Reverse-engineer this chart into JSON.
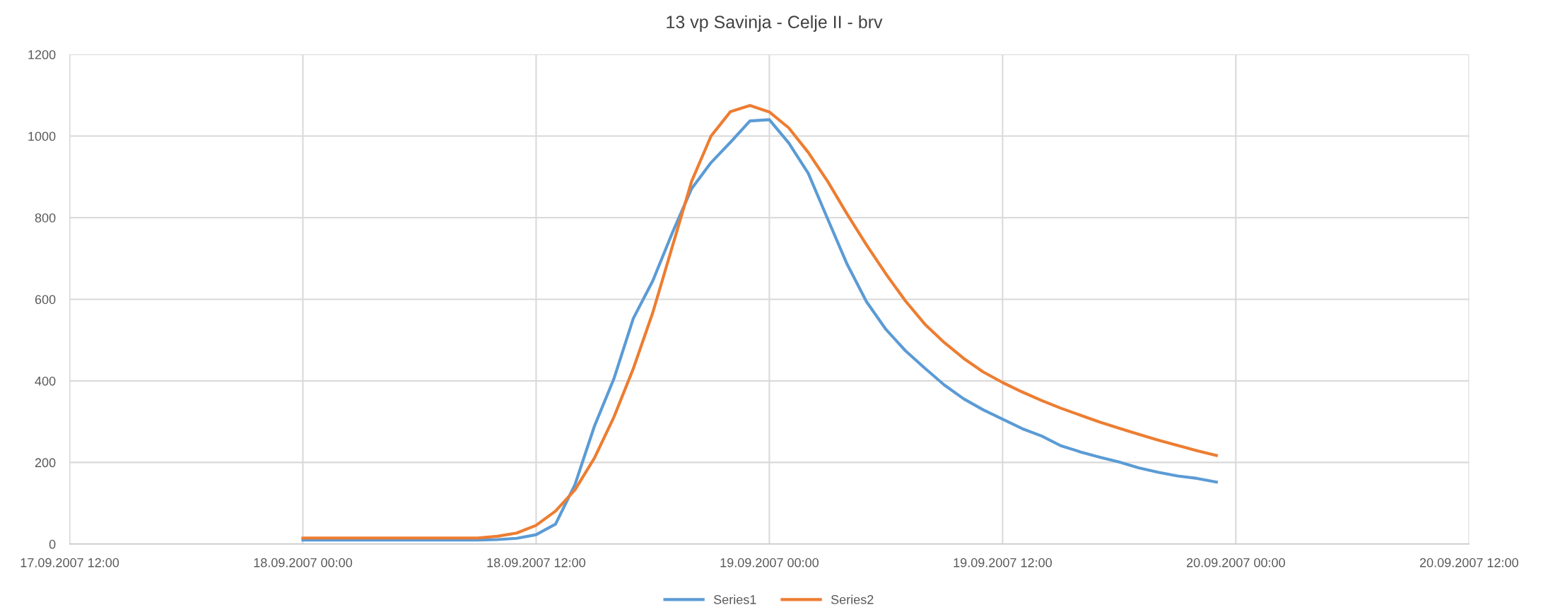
{
  "chart_data": {
    "type": "line",
    "title": "13 vp Savinja - Celje II - brv",
    "x": [
      "2007-09-18T00:00",
      "2007-09-18T01:00",
      "2007-09-18T02:00",
      "2007-09-18T03:00",
      "2007-09-18T04:00",
      "2007-09-18T05:00",
      "2007-09-18T06:00",
      "2007-09-18T07:00",
      "2007-09-18T08:00",
      "2007-09-18T09:00",
      "2007-09-18T10:00",
      "2007-09-18T11:00",
      "2007-09-18T12:00",
      "2007-09-18T13:00",
      "2007-09-18T14:00",
      "2007-09-18T15:00",
      "2007-09-18T16:00",
      "2007-09-18T17:00",
      "2007-09-18T18:00",
      "2007-09-18T19:00",
      "2007-09-18T20:00",
      "2007-09-18T21:00",
      "2007-09-18T22:00",
      "2007-09-18T23:00",
      "2007-09-19T00:00",
      "2007-09-19T01:00",
      "2007-09-19T02:00",
      "2007-09-19T03:00",
      "2007-09-19T04:00",
      "2007-09-19T05:00",
      "2007-09-19T06:00",
      "2007-09-19T07:00",
      "2007-09-19T08:00",
      "2007-09-19T09:00",
      "2007-09-19T10:00",
      "2007-09-19T11:00",
      "2007-09-19T12:00",
      "2007-09-19T13:00",
      "2007-09-19T14:00",
      "2007-09-19T15:00",
      "2007-09-19T16:00",
      "2007-09-19T17:00",
      "2007-09-19T18:00",
      "2007-09-19T19:00",
      "2007-09-19T20:00",
      "2007-09-19T21:00",
      "2007-09-19T22:00",
      "2007-09-19T23:00"
    ],
    "series": [
      {
        "name": "Series1",
        "color": "#5b9bd5",
        "values": [
          10,
          10,
          10,
          10,
          10,
          10,
          10,
          10,
          10,
          10,
          11,
          14,
          23,
          49,
          146,
          289,
          405,
          553,
          645,
          762,
          871,
          935,
          985,
          1037,
          1040,
          983,
          909,
          797,
          686,
          594,
          526,
          474,
          431,
          390,
          356,
          329,
          306,
          283,
          265,
          241,
          226,
          213,
          201,
          187,
          176,
          167,
          161,
          152
        ]
      },
      {
        "name": "Series2",
        "color": "#ed7d31",
        "values": [
          15,
          15,
          15,
          15,
          15,
          15,
          15,
          15,
          15,
          15,
          19,
          27,
          46,
          81,
          133,
          211,
          311,
          430,
          567,
          728,
          889,
          1000,
          1060,
          1075,
          1059,
          1020,
          960,
          889,
          809,
          733,
          662,
          596,
          539,
          494,
          455,
          422,
          396,
          373,
          352,
          333,
          316,
          299,
          284,
          269,
          255,
          242,
          229,
          217
        ]
      }
    ],
    "xlim": [
      "2007-09-17T12:00",
      "2007-09-20T12:00"
    ],
    "xticks": [
      {
        "value": "2007-09-17T12:00",
        "label": "17.09.2007 12:00"
      },
      {
        "value": "2007-09-18T00:00",
        "label": "18.09.2007 00:00"
      },
      {
        "value": "2007-09-18T12:00",
        "label": "18.09.2007 12:00"
      },
      {
        "value": "2007-09-19T00:00",
        "label": "19.09.2007 00:00"
      },
      {
        "value": "2007-09-19T12:00",
        "label": "19.09.2007 12:00"
      },
      {
        "value": "2007-09-20T00:00",
        "label": "20.09.2007 00:00"
      },
      {
        "value": "2007-09-20T12:00",
        "label": "20.09.2007 12:00"
      }
    ],
    "ylim": [
      0,
      1200
    ],
    "yticks": [
      0,
      200,
      400,
      600,
      800,
      1000,
      1200
    ],
    "grid": true,
    "legend": "bottom",
    "marker": "none",
    "line_style": "solid"
  }
}
